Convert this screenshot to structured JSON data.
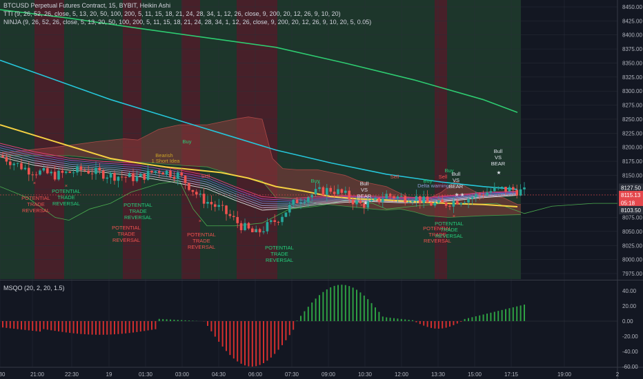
{
  "legend": {
    "title": "BTCUSD Perpetual Futures Contract, 15, BYBIT, Heikin Ashi",
    "tti": "TTI (9, 26, 52, 26, close, 5, 13, 20, 50, 100, 200, 5, 11, 15, 18, 21, 24, 28, 34, 1, 12, 26, close, 9, 200, 20, 12, 26, 9, 10, 20)",
    "ninja": "NINJA (9, 26, 52, 26, close, 5, 13, 20, 50, 100, 200, 5, 11, 15, 18, 21, 24, 28, 34, 1, 12, 26, close, 9, 200, 20, 12, 26, 9, 10, 20, 5, 0.05)",
    "msqo": "MSQO (20, 2, 20, 1.5)"
  },
  "price_axis": [
    "8450.00",
    "8425.00",
    "8400.00",
    "8375.00",
    "8350.00",
    "8325.00",
    "8300.00",
    "8275.00",
    "8250.00",
    "8225.00",
    "8200.00",
    "8175.00",
    "8150.00",
    "8125.00",
    "8100.00",
    "8075.00",
    "8050.00",
    "8025.00",
    "8000.00",
    "7975.00"
  ],
  "price_tags": {
    "current": "8127.50",
    "red": "8115.13",
    "timer": "05:18",
    "dark": "8103.50",
    "red_color": "#e5484d",
    "dark_color": "#2a2e39"
  },
  "osc_axis": [
    "40.00",
    "20.00",
    "0.00",
    "-20.00",
    "-40.00",
    "-60.00"
  ],
  "time_axis": [
    "30",
    "21:00",
    "22:30",
    "19",
    "01:30",
    "03:00",
    "04:30",
    "06:00",
    "07:30",
    "09:00",
    "10:30",
    "12:00",
    "13:30",
    "15:00",
    "17:15",
    "19:00",
    "2"
  ],
  "annotations": {
    "potential": [
      "POTENTIAL",
      "TRADE",
      "REVERSAL"
    ],
    "buy": "Buy",
    "sell": "Sell",
    "bull_vs_bear": [
      "Bull",
      "VS",
      "BEAR"
    ],
    "bearish": "Bearish",
    "short_idea": "1 Short Idea",
    "star": "★",
    "cross": "×",
    "delta": "Delta warning"
  },
  "colors": {
    "up": "#26a69a",
    "down": "#ef5350",
    "sma200": "#2ecc71",
    "sma100": "#26c6da",
    "sma50": "#f5d142",
    "cloud_red": "#8b3a3a",
    "cloud_green": "#355e3b",
    "zone_green": "#1f3a2c",
    "zone_red": "#4a2029"
  }
}
